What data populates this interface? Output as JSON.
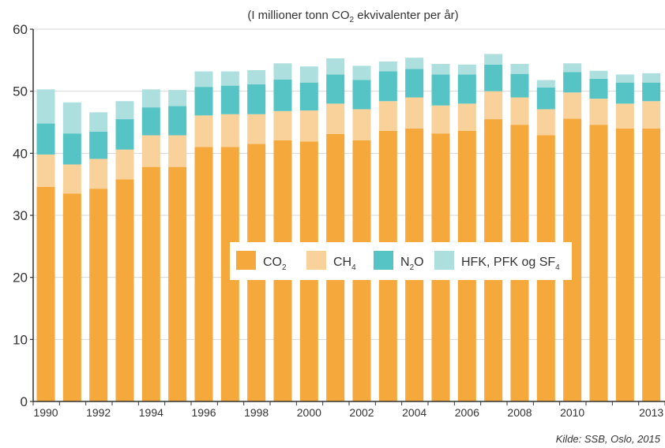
{
  "chart_data": {
    "type": "bar",
    "stacked": true,
    "title": "",
    "subtitle_parts": {
      "before": "(I millioner tonn CO",
      "sub": "2",
      "after": " ekvivalenter per år)"
    },
    "source": "Kilde: SSB, Oslo, 2015",
    "xlabel": "",
    "ylabel": "",
    "ylim": [
      0,
      60
    ],
    "yticks": [
      0,
      10,
      20,
      30,
      40,
      50,
      60
    ],
    "grid": true,
    "legend_position": "center",
    "categories": [
      "1990",
      "1991",
      "1992",
      "1993",
      "1994",
      "1995",
      "1996",
      "1997",
      "1998",
      "1999",
      "2000",
      "2001",
      "2002",
      "2003",
      "2004",
      "2005",
      "2006",
      "2007",
      "2008",
      "2009",
      "2010",
      "2011",
      "2012",
      "2013"
    ],
    "xtick_labels": [
      "1990",
      "",
      "1992",
      "",
      "1994",
      "",
      "1996",
      "",
      "1998",
      "",
      "2000",
      "",
      "2002",
      "",
      "2004",
      "",
      "2006",
      "",
      "2008",
      "",
      "2010",
      "",
      "",
      "2013"
    ],
    "series": [
      {
        "name": "CO",
        "name_sub": "2",
        "color": "#f5a93d",
        "values": [
          34.6,
          33.5,
          34.3,
          35.8,
          37.8,
          37.8,
          41.0,
          41.0,
          41.5,
          42.1,
          41.9,
          43.1,
          42.1,
          43.6,
          44.0,
          43.2,
          43.6,
          45.5,
          44.6,
          42.9,
          45.6,
          44.6,
          44.0,
          44.0
        ]
      },
      {
        "name": "CH",
        "name_sub": "4",
        "color": "#f9d19b",
        "values": [
          5.2,
          4.7,
          4.8,
          4.8,
          5.1,
          5.1,
          5.1,
          5.3,
          4.8,
          4.7,
          5.0,
          4.9,
          5.0,
          4.8,
          5.0,
          4.5,
          4.4,
          4.5,
          4.4,
          4.2,
          4.2,
          4.2,
          4.0,
          4.4
        ]
      },
      {
        "name": "N",
        "name_sub": "2",
        "name_after": "O",
        "color": "#56c4c4",
        "values": [
          5.0,
          5.0,
          4.4,
          4.9,
          4.5,
          4.7,
          4.6,
          4.6,
          4.8,
          5.1,
          4.5,
          4.7,
          4.7,
          4.8,
          4.6,
          5.0,
          4.7,
          4.3,
          3.8,
          3.5,
          3.3,
          3.2,
          3.4,
          3.0
        ]
      },
      {
        "name": "HFK, PFK og SF",
        "name_sub": "4",
        "color": "#aedfdf",
        "values": [
          5.5,
          5.0,
          3.1,
          2.9,
          2.9,
          2.6,
          2.5,
          2.3,
          2.3,
          2.6,
          2.6,
          2.6,
          2.3,
          1.6,
          1.8,
          1.7,
          1.6,
          1.7,
          1.6,
          1.2,
          1.4,
          1.3,
          1.3,
          1.5
        ]
      }
    ]
  }
}
